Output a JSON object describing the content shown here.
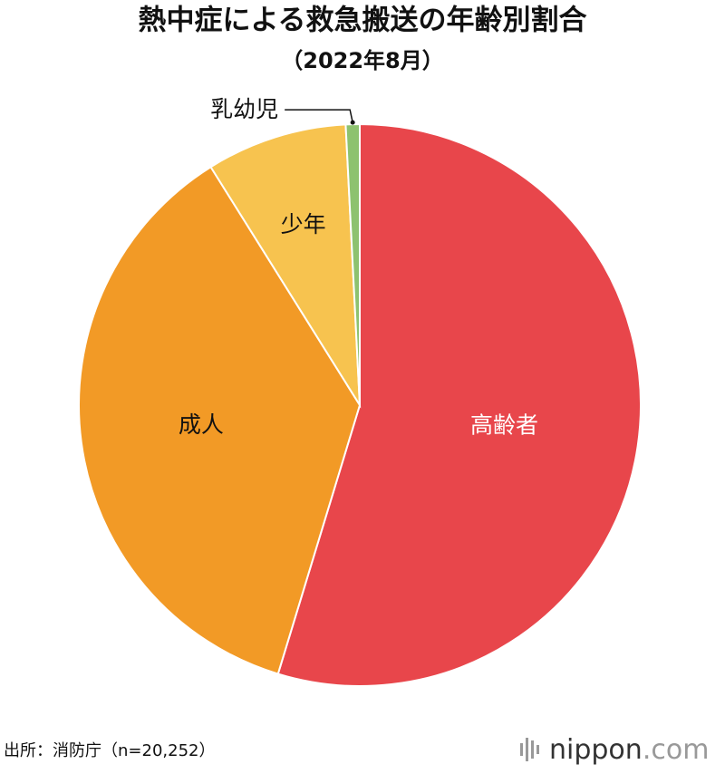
{
  "chart_data": {
    "type": "pie",
    "title": "熱中症による救急搬送の年齢別割合",
    "subtitle": "（2022年8月）",
    "categories": [
      "高齢者",
      "成人",
      "少年",
      "乳幼児"
    ],
    "values": [
      54.7,
      36.4,
      8.1,
      0.8
    ],
    "colors": [
      "#e8464b",
      "#f29a26",
      "#f7c34f",
      "#8dc26f"
    ]
  },
  "footer": {
    "source": "出所：消防庁（n=20,252）",
    "logo_main": "nippon",
    "logo_suffix": ".com"
  }
}
